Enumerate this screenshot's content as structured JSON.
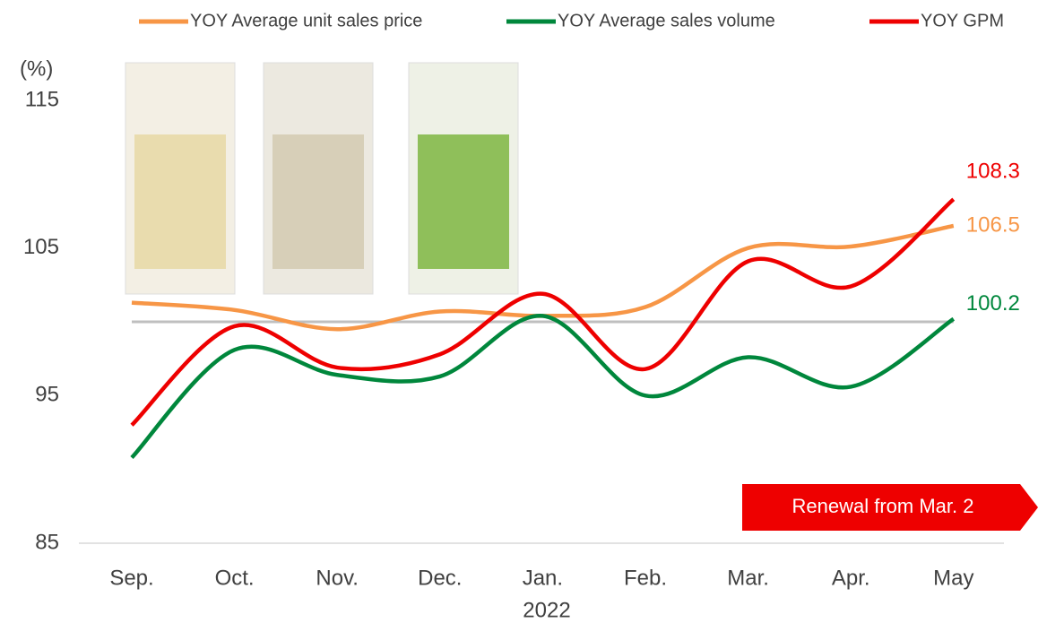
{
  "chart_data": {
    "type": "line",
    "y_label": "(%)",
    "x_label": "2022",
    "annotation": "Renewal from Mar. 2",
    "categories": [
      "Sep.",
      "Oct.",
      "Nov.",
      "Dec.",
      "Jan.",
      "Feb.",
      "Mar.",
      "Apr.",
      "May"
    ],
    "series": [
      {
        "name": "YOY Average unit sales price",
        "color": "#f79646",
        "values": [
          101.3,
          100.8,
          99.5,
          100.7,
          100.4,
          101.0,
          105.0,
          105.1,
          106.5
        ]
      },
      {
        "name": "YOY Average sales volume",
        "color": "#00873c",
        "values": [
          90.8,
          98.1,
          96.4,
          96.3,
          100.4,
          95.0,
          97.6,
          95.6,
          100.2
        ]
      },
      {
        "name": "YOY GPM",
        "color": "#ee0000",
        "values": [
          93.0,
          99.7,
          96.9,
          97.8,
          101.9,
          96.8,
          104.1,
          102.4,
          108.3
        ]
      }
    ],
    "reference_line": 100,
    "ylim": [
      85,
      115
    ],
    "yticks": [
      85,
      95,
      105,
      115
    ],
    "legend": "top"
  }
}
